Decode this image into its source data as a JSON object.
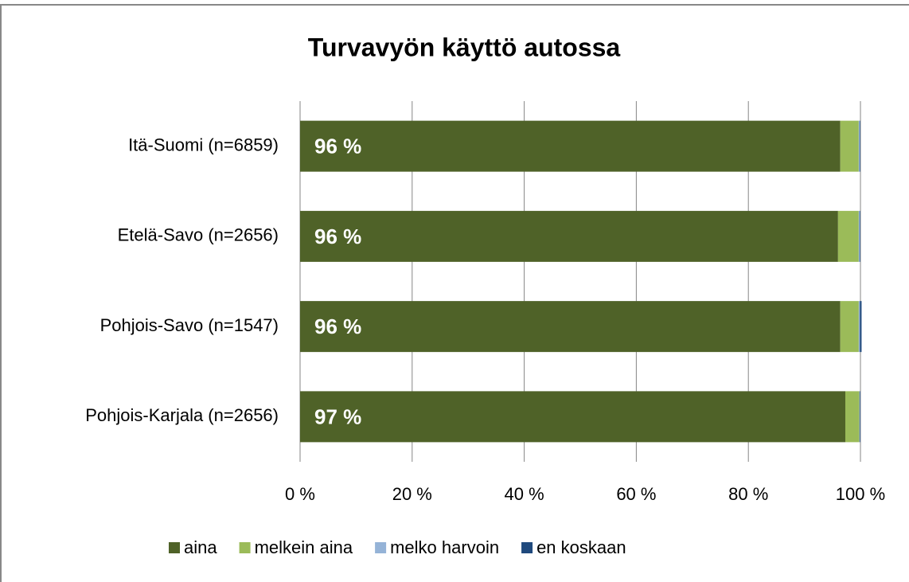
{
  "chart_data": {
    "type": "stacked-bar-horizontal",
    "title": "Turvavyön käyttö autossa",
    "categories": [
      "Itä-Suomi (n=6859)",
      "Etelä-Savo (n=2656)",
      "Pohjois-Savo (n=1547)",
      "Pohjois-Karjala (n=2656)"
    ],
    "series": [
      {
        "name": "aina",
        "color": "#4f6228",
        "values": [
          96.4,
          96.0,
          96.4,
          97.3
        ],
        "value_labels": [
          "96 %",
          "96 %",
          "96 %",
          "97 %"
        ]
      },
      {
        "name": "melkein aina",
        "color": "#9bbb59",
        "values": [
          3.3,
          3.7,
          3.3,
          2.5
        ]
      },
      {
        "name": "melko harvoin",
        "color": "#95b3d7",
        "values": [
          0.2,
          0.2,
          0.2,
          0.1
        ]
      },
      {
        "name": "en koskaan",
        "color": "#1f497d",
        "values": [
          0.1,
          0.1,
          0.3,
          0.1
        ]
      }
    ],
    "xlim": [
      0,
      100
    ],
    "xticks": [
      {
        "value": 0,
        "label": "0 %"
      },
      {
        "value": 20,
        "label": "20 %"
      },
      {
        "value": 40,
        "label": "40 %"
      },
      {
        "value": 60,
        "label": "60 %"
      },
      {
        "value": 80,
        "label": "80 %"
      },
      {
        "value": 100,
        "label": "100 %"
      }
    ],
    "grid": true,
    "legend": "bottom"
  }
}
